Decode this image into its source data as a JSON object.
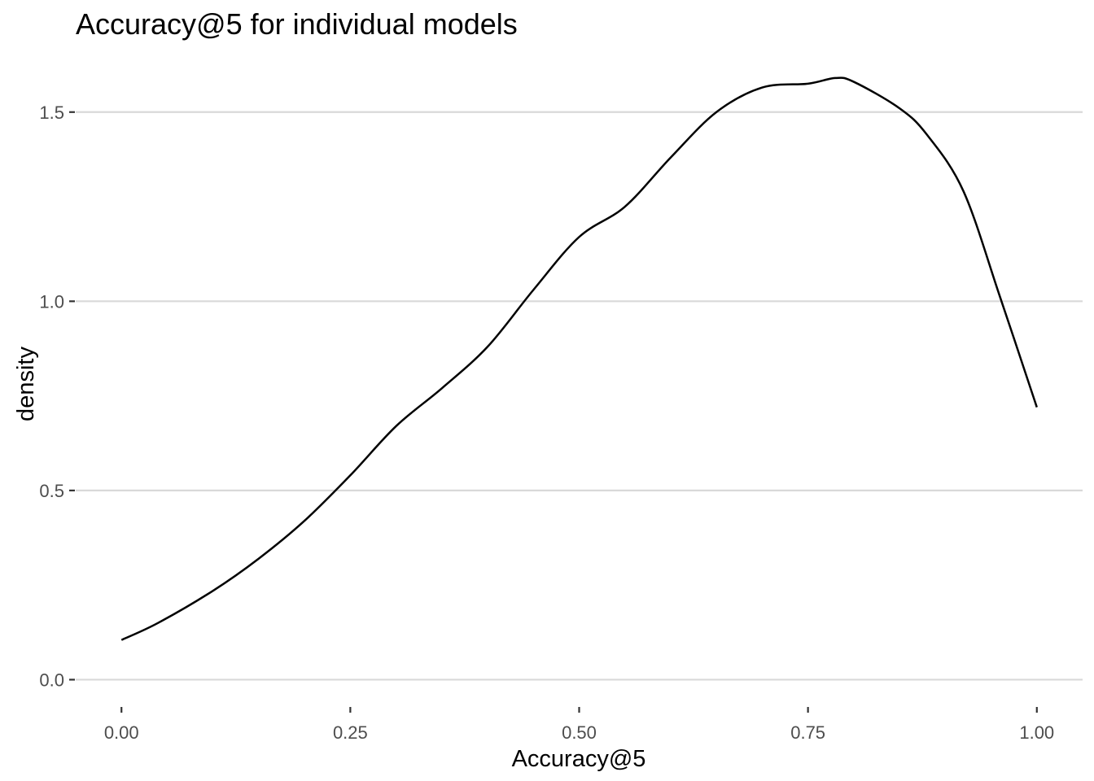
{
  "chart_data": {
    "type": "line",
    "title": "Accuracy@5 for individual models",
    "xlabel": "Accuracy@5",
    "ylabel": "density",
    "xlim": [
      -0.05,
      1.05
    ],
    "ylim": [
      -0.07,
      1.65
    ],
    "x_ticks": [
      0,
      0.25,
      0.5,
      0.75,
      1
    ],
    "x_tick_labels": [
      "0.00",
      "0.25",
      "0.50",
      "0.75",
      "1.00"
    ],
    "y_ticks": [
      0,
      0.5,
      1,
      1.5
    ],
    "y_tick_labels": [
      "0.0",
      "0.5",
      "1.0",
      "1.5"
    ],
    "grid": "horizontal",
    "legend": "none",
    "series": [
      {
        "color": "#000000",
        "x": [
          0.0,
          0.04,
          0.1,
          0.15,
          0.2,
          0.25,
          0.3,
          0.35,
          0.4,
          0.45,
          0.5,
          0.55,
          0.6,
          0.65,
          0.7,
          0.75,
          0.78,
          0.8,
          0.85,
          0.88,
          0.92,
          0.96,
          1.0
        ],
        "y": [
          0.105,
          0.15,
          0.235,
          0.32,
          0.42,
          0.54,
          0.67,
          0.77,
          0.88,
          1.03,
          1.17,
          1.25,
          1.38,
          1.5,
          1.565,
          1.575,
          1.59,
          1.58,
          1.51,
          1.44,
          1.29,
          1.01,
          0.72
        ]
      }
    ]
  }
}
